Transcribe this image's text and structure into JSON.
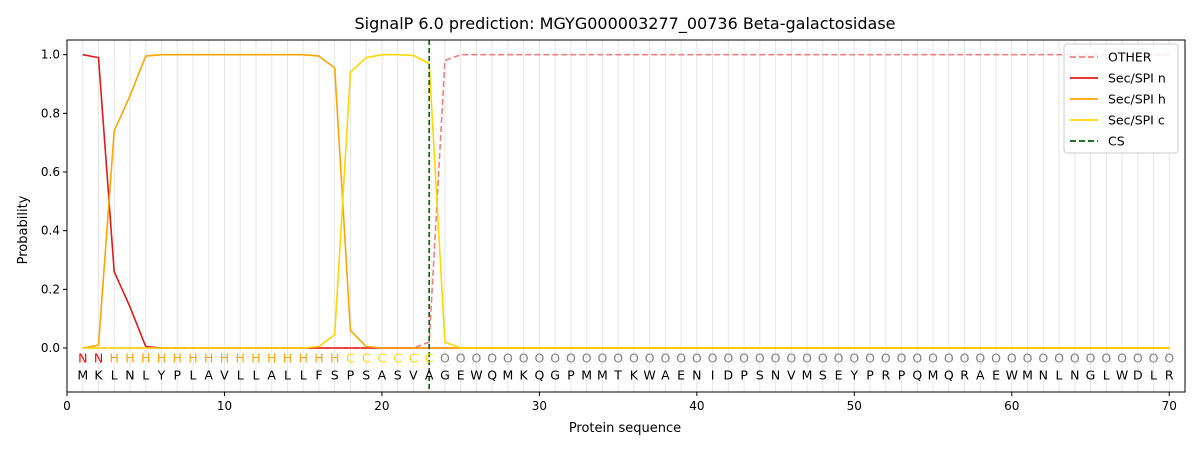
{
  "chart_data": {
    "type": "line",
    "title": "SignalP 6.0 prediction: MGYG000003277_00736 Beta-galactosidase",
    "xlabel": "Protein sequence",
    "ylabel": "Probability",
    "xlim": [
      0,
      71
    ],
    "ylim": [
      -0.15,
      1.05
    ],
    "xticks": [
      "0",
      "10",
      "20",
      "30",
      "40",
      "50",
      "60",
      "70"
    ],
    "yticks": [
      "0.0",
      "0.2",
      "0.4",
      "0.6",
      "0.8",
      "1.0"
    ],
    "legend_position": "top-right",
    "sequence": [
      "M",
      "K",
      "L",
      "N",
      "L",
      "Y",
      "P",
      "L",
      "A",
      "V",
      "L",
      "L",
      "A",
      "L",
      "L",
      "F",
      "S",
      "P",
      "S",
      "A",
      "S",
      "V",
      "A",
      "G",
      "E",
      "W",
      "Q",
      "M",
      "K",
      "Q",
      "G",
      "P",
      "M",
      "M",
      "T",
      "K",
      "W",
      "A",
      "E",
      "N",
      "I",
      "D",
      "P",
      "S",
      "N",
      "V",
      "M",
      "S",
      "E",
      "Y",
      "P",
      "R",
      "P",
      "Q",
      "M",
      "Q",
      "R",
      "A",
      "E",
      "W",
      "M",
      "N",
      "L",
      "N",
      "G",
      "L",
      "W",
      "D",
      "L",
      "R"
    ],
    "region_labels": [
      "N",
      "N",
      "H",
      "H",
      "H",
      "H",
      "H",
      "H",
      "H",
      "H",
      "H",
      "H",
      "H",
      "H",
      "H",
      "H",
      "H",
      "C",
      "C",
      "C",
      "C",
      "C",
      "C",
      "O",
      "O",
      "O",
      "O",
      "O",
      "O",
      "O",
      "O",
      "O",
      "O",
      "O",
      "O",
      "O",
      "O",
      "O",
      "O",
      "O",
      "O",
      "O",
      "O",
      "O",
      "O",
      "O",
      "O",
      "O",
      "O",
      "O",
      "O",
      "O",
      "O",
      "O",
      "O",
      "O",
      "O",
      "O",
      "O",
      "O",
      "O",
      "O",
      "O",
      "O",
      "O",
      "O",
      "O",
      "O",
      "O",
      "O"
    ],
    "region_colors": {
      "N": "#ff0000",
      "H": "#ffa500",
      "C": "#ffd700",
      "O": "#808080"
    },
    "cleavage_site": 23,
    "series": [
      {
        "name": "OTHER",
        "color": "#f08080",
        "dash": true,
        "values": [
          0.0,
          0.0,
          0.0,
          0.0,
          0.0,
          0.0,
          0.0,
          0.0,
          0.0,
          0.0,
          0.0,
          0.0,
          0.0,
          0.0,
          0.0,
          0.0,
          0.0,
          0.0,
          0.0,
          0.0,
          0.0,
          0.0,
          0.02,
          0.98,
          1.0,
          1.0,
          1.0,
          1.0,
          1.0,
          1.0,
          1.0,
          1.0,
          1.0,
          1.0,
          1.0,
          1.0,
          1.0,
          1.0,
          1.0,
          1.0,
          1.0,
          1.0,
          1.0,
          1.0,
          1.0,
          1.0,
          1.0,
          1.0,
          1.0,
          1.0,
          1.0,
          1.0,
          1.0,
          1.0,
          1.0,
          1.0,
          1.0,
          1.0,
          1.0,
          1.0,
          1.0,
          1.0,
          1.0,
          1.0,
          1.0,
          1.0,
          1.0,
          1.0,
          1.0,
          1.0
        ]
      },
      {
        "name": "Sec/SPI n",
        "color": "#e31a1c",
        "dash": false,
        "values": [
          1.0,
          0.99,
          0.26,
          0.14,
          0.005,
          0.0,
          0.0,
          0.0,
          0.0,
          0.0,
          0.0,
          0.0,
          0.0,
          0.0,
          0.0,
          0.0,
          0.0,
          0.0,
          0.0,
          0.0,
          0.0,
          0.0,
          0.0,
          0.0,
          0.0,
          0.0,
          0.0,
          0.0,
          0.0,
          0.0,
          0.0,
          0.0,
          0.0,
          0.0,
          0.0,
          0.0,
          0.0,
          0.0,
          0.0,
          0.0,
          0.0,
          0.0,
          0.0,
          0.0,
          0.0,
          0.0,
          0.0,
          0.0,
          0.0,
          0.0,
          0.0,
          0.0,
          0.0,
          0.0,
          0.0,
          0.0,
          0.0,
          0.0,
          0.0,
          0.0,
          0.0,
          0.0,
          0.0,
          0.0,
          0.0,
          0.0,
          0.0,
          0.0,
          0.0,
          0.0
        ]
      },
      {
        "name": "Sec/SPI h",
        "color": "#ffa500",
        "dash": false,
        "values": [
          0.0,
          0.01,
          0.74,
          0.86,
          0.995,
          1.0,
          1.0,
          1.0,
          1.0,
          1.0,
          1.0,
          1.0,
          1.0,
          1.0,
          1.0,
          0.995,
          0.955,
          0.06,
          0.005,
          0.0,
          0.0,
          0.0,
          0.0,
          0.0,
          0.0,
          0.0,
          0.0,
          0.0,
          0.0,
          0.0,
          0.0,
          0.0,
          0.0,
          0.0,
          0.0,
          0.0,
          0.0,
          0.0,
          0.0,
          0.0,
          0.0,
          0.0,
          0.0,
          0.0,
          0.0,
          0.0,
          0.0,
          0.0,
          0.0,
          0.0,
          0.0,
          0.0,
          0.0,
          0.0,
          0.0,
          0.0,
          0.0,
          0.0,
          0.0,
          0.0,
          0.0,
          0.0,
          0.0,
          0.0,
          0.0,
          0.0,
          0.0,
          0.0,
          0.0,
          0.0
        ]
      },
      {
        "name": "Sec/SPI c",
        "color": "#ffd700",
        "dash": false,
        "values": [
          0.0,
          0.0,
          0.0,
          0.0,
          0.0,
          0.0,
          0.0,
          0.0,
          0.0,
          0.0,
          0.0,
          0.0,
          0.0,
          0.0,
          0.0,
          0.005,
          0.045,
          0.94,
          0.99,
          1.0,
          1.0,
          0.997,
          0.97,
          0.02,
          0.0,
          0.0,
          0.0,
          0.0,
          0.0,
          0.0,
          0.0,
          0.0,
          0.0,
          0.0,
          0.0,
          0.0,
          0.0,
          0.0,
          0.0,
          0.0,
          0.0,
          0.0,
          0.0,
          0.0,
          0.0,
          0.0,
          0.0,
          0.0,
          0.0,
          0.0,
          0.0,
          0.0,
          0.0,
          0.0,
          0.0,
          0.0,
          0.0,
          0.0,
          0.0,
          0.0,
          0.0,
          0.0,
          0.0,
          0.0,
          0.0,
          0.0,
          0.0,
          0.0,
          0.0,
          0.0
        ]
      },
      {
        "name": "CS",
        "color": "#006400",
        "dash": true,
        "values": []
      }
    ]
  }
}
